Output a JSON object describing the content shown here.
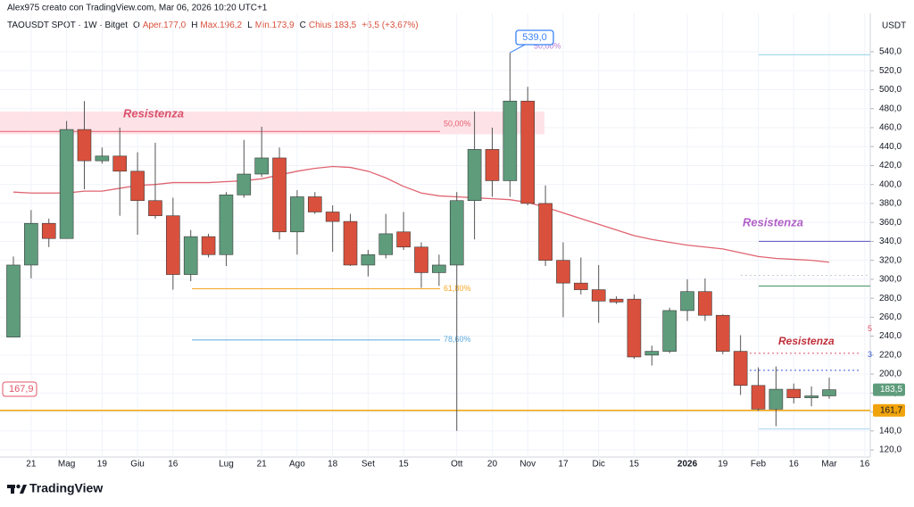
{
  "chart_data": {
    "type": "candlestick",
    "credit": "Alex975 creato con TradingView.com, Mar 06, 2026 10:20 UTC+1",
    "legend": [
      "TAOUSDT SPOT · 1W · Bitget",
      "O",
      "Aper.177,0",
      "H",
      "Max.196,2",
      "L",
      "Min.173,9",
      "C",
      "Chius.183,5",
      "+6,5 (+3,67%)"
    ],
    "axis_unit": "USDT",
    "brand": "TradingView",
    "up_color": "#5e9c7c",
    "down_color": "#d9503c",
    "grid": true,
    "categories": [
      null,
      "21",
      null,
      "Mag",
      null,
      "19",
      null,
      "Giu",
      null,
      "16",
      null,
      null,
      "Lug",
      null,
      "21",
      null,
      "Ago",
      null,
      "18",
      null,
      "Set",
      null,
      "15",
      null,
      null,
      "Ott",
      null,
      "20",
      null,
      "Nov",
      null,
      "17",
      null,
      "Dic",
      null,
      "15",
      null,
      null,
      "2026",
      null,
      "19",
      null,
      "Feb",
      null,
      "16",
      null,
      "Mar",
      null,
      "16"
    ],
    "open": [
      239,
      315,
      359,
      343,
      458,
      425,
      430,
      414,
      383,
      367,
      305,
      345,
      326,
      389,
      411,
      428,
      350,
      387,
      371,
      361,
      315,
      326,
      350,
      334,
      307,
      315,
      383,
      437,
      404,
      488,
      380,
      320,
      296,
      289,
      279,
      279,
      220,
      224,
      267,
      287,
      262,
      224,
      188,
      163,
      184,
      175,
      177,
      null,
      null
    ],
    "high": [
      324,
      373,
      364,
      467,
      488,
      439,
      460,
      434,
      444,
      386,
      352,
      348,
      392,
      447,
      461,
      439,
      394,
      392,
      378,
      369,
      331,
      369,
      371,
      339,
      326,
      392,
      477,
      460,
      539,
      503,
      399,
      339,
      323,
      315,
      282,
      284,
      230,
      270,
      300,
      301,
      263,
      241,
      207,
      208,
      190,
      187,
      196.2,
      null,
      null
    ],
    "low": [
      239,
      301,
      334,
      343,
      395,
      422,
      367,
      347,
      364,
      289,
      298,
      323,
      314,
      386,
      408,
      342,
      326,
      369,
      329,
      314,
      303,
      322,
      331,
      291,
      293,
      140,
      342,
      387,
      387,
      378,
      314,
      260,
      284,
      254,
      274,
      216,
      209,
      222,
      256,
      256,
      221,
      178,
      161,
      145,
      169,
      166,
      173.9,
      null,
      null
    ],
    "close": [
      315,
      359,
      343,
      458,
      425,
      430,
      414,
      383,
      367,
      305,
      345,
      326,
      389,
      411,
      428,
      350,
      387,
      371,
      361,
      315,
      326,
      348,
      334,
      307,
      315,
      383,
      437,
      404,
      488,
      380,
      320,
      296,
      289,
      277,
      276,
      218,
      224,
      267,
      287,
      262,
      224,
      188,
      163,
      184,
      175,
      177,
      183.5,
      null,
      null
    ],
    "ma": {
      "color": "#e06470",
      "values": [
        392,
        391,
        391,
        391,
        393,
        393,
        396,
        399,
        400,
        402,
        402,
        402,
        403,
        404,
        406,
        410,
        414,
        417,
        419,
        418,
        414,
        407,
        398,
        391,
        388,
        387,
        386,
        385,
        384,
        381,
        376,
        370,
        364,
        358,
        352,
        346,
        342,
        339,
        336,
        334,
        332,
        328,
        324,
        322,
        321,
        320,
        318,
        null,
        null
      ]
    },
    "ylim": [
      112.5,
      580.5
    ],
    "yticks": [
      {
        "value": 120,
        "label": "120,0"
      },
      {
        "value": 140,
        "label": "140,0"
      },
      {
        "value": 160,
        "label": "160,0"
      },
      {
        "value": 180,
        "label": "180,0"
      },
      {
        "value": 200,
        "label": "200,0"
      },
      {
        "value": 220,
        "label": "220,0"
      },
      {
        "value": 240,
        "label": "240,0"
      },
      {
        "value": 260,
        "label": "260,0"
      },
      {
        "value": 280,
        "label": "280,0"
      },
      {
        "value": 300,
        "label": "300,0"
      },
      {
        "value": 320,
        "label": "320,0"
      },
      {
        "value": 340,
        "label": "340,0"
      },
      {
        "value": 360,
        "label": "360,0"
      },
      {
        "value": 380,
        "label": "380,0"
      },
      {
        "value": 400,
        "label": "400,0"
      },
      {
        "value": 420,
        "label": "420,0"
      },
      {
        "value": 440,
        "label": "440,0"
      },
      {
        "value": 460,
        "label": "460,0"
      },
      {
        "value": 480,
        "label": "480,0"
      },
      {
        "value": 500,
        "label": "500,0"
      },
      {
        "value": 520,
        "label": "520,0"
      },
      {
        "value": 540,
        "label": "540,0"
      }
    ],
    "zone": {
      "range": [
        453,
        477
      ],
      "color": "#fde3e8"
    },
    "levels": [
      {
        "value": 456,
        "color": "#e8606f",
        "style": "solid",
        "label": "50,00%"
      },
      {
        "value": 290,
        "color": "#f5a623",
        "style": "solid",
        "label": "61,80%"
      },
      {
        "value": 236,
        "color": "#5aa9dd",
        "style": "solid",
        "label": "78,60%"
      },
      {
        "value": 161.7,
        "color": "#f0a30a",
        "style": "solid"
      },
      {
        "value": 537,
        "color": "#8fd0ea",
        "style": "solid"
      },
      {
        "value": 340,
        "color": "#5b4fc4",
        "style": "solid"
      },
      {
        "value": 293,
        "color": "#3d8f5a",
        "style": "solid"
      },
      {
        "value": 222,
        "color": "#e0566a",
        "style": "dotted",
        "label": "5"
      },
      {
        "value": 204,
        "color": "#3b5bdb",
        "style": "dotted",
        "label": "3"
      },
      {
        "value": 142,
        "color": "#a8d5f0",
        "style": "solid"
      },
      {
        "value": 304,
        "color": "#c8c8c8",
        "style": "dotted"
      }
    ],
    "annotations": [
      {
        "text": "Resistenza",
        "color": "#d9506a"
      },
      {
        "text": "Resistenza",
        "color": "#b05fc8"
      },
      {
        "text": "Resistenza",
        "color": "#c0303a"
      },
      {
        "text": "50,00%",
        "color": "#b77ad6"
      },
      {
        "text": "167,9",
        "color": "#e0566a"
      }
    ],
    "price_tags": [
      {
        "value": 539,
        "label": "539,0",
        "color": "#3b82f6"
      },
      {
        "value": 183.5,
        "label": "183,5",
        "color": "#5e9c7c"
      },
      {
        "value": 161.7,
        "label": "161,7",
        "color": "#f0a30a"
      }
    ]
  }
}
